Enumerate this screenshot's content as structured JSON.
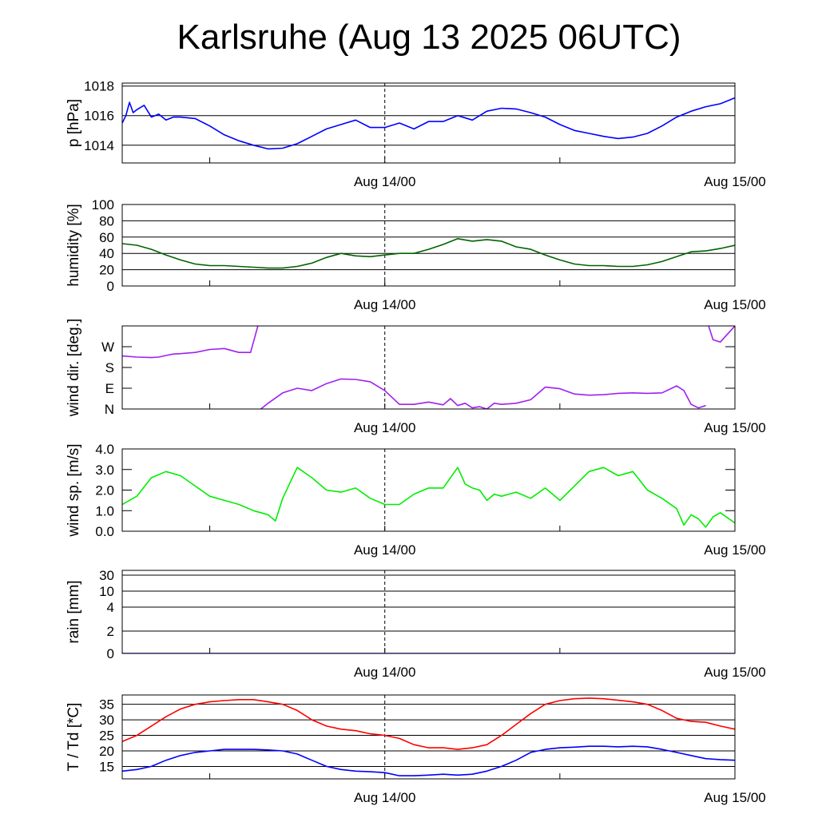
{
  "chart_data": {
    "title": "Karlsruhe (Aug 13 2025 06UTC)",
    "x_axis": {
      "range": [
        "Aug 13 06:00",
        "Aug 15 00:00"
      ],
      "tick_labels": [
        "Aug 14/00",
        "Aug 15/00"
      ]
    },
    "panels": [
      {
        "type": "line",
        "ylabel": "p [hPa]",
        "ylim": [
          1012.8,
          1018.2
        ],
        "tick_labels": [
          "1014",
          "1016",
          "1018"
        ],
        "tick_values": [
          1014,
          1016,
          1018
        ],
        "grid": true,
        "series": [
          {
            "color": "#0000ff",
            "x": [
              0,
              0.25,
              0.5,
              0.75,
              1,
              1.5,
              2,
              2.5,
              3,
              3.5,
              4,
              5,
              6,
              7,
              8,
              9,
              10,
              11,
              12,
              13,
              14,
              15,
              16,
              17,
              18,
              19,
              20,
              21,
              22,
              23,
              24,
              25,
              26,
              27,
              28,
              29,
              30,
              31,
              32,
              33,
              34,
              35,
              36,
              37,
              38,
              39,
              40,
              41,
              42
            ],
            "y": [
              1015.5,
              1016.0,
              1016.9,
              1016.2,
              1016.4,
              1016.7,
              1015.9,
              1016.1,
              1015.7,
              1015.9,
              1015.9,
              1015.8,
              1015.3,
              1014.7,
              1014.3,
              1014.0,
              1013.75,
              1013.8,
              1014.1,
              1014.6,
              1015.1,
              1015.4,
              1015.7,
              1015.2,
              1015.2,
              1015.5,
              1015.1,
              1015.6,
              1015.6,
              1016.0,
              1015.7,
              1016.3,
              1016.5,
              1016.45,
              1016.2,
              1015.9,
              1015.4,
              1015.0,
              1014.8,
              1014.6,
              1014.45,
              1014.55,
              1014.8,
              1015.3,
              1015.9,
              1016.3,
              1016.6,
              1016.8,
              1017.2
            ]
          }
        ]
      },
      {
        "type": "line",
        "ylabel": "humidity [%]",
        "ylim": [
          0,
          100
        ],
        "tick_labels": [
          "0",
          "20",
          "40",
          "60",
          "80",
          "100"
        ],
        "tick_values": [
          0,
          20,
          40,
          60,
          80,
          100
        ],
        "grid": true,
        "series": [
          {
            "color": "#006400",
            "x": [
              0,
              1,
              2,
              3,
              4,
              5,
              6,
              7,
              8,
              9,
              10,
              11,
              12,
              13,
              14,
              15,
              16,
              17,
              18,
              19,
              20,
              21,
              22,
              23,
              24,
              25,
              26,
              27,
              28,
              29,
              30,
              31,
              32,
              33,
              34,
              35,
              36,
              37,
              38,
              39,
              40,
              41,
              42
            ],
            "y": [
              52,
              50,
              45,
              38,
              32,
              27,
              25,
              25,
              24,
              23,
              22,
              22,
              24,
              28,
              35,
              40,
              37,
              36,
              38,
              40,
              40,
              45,
              51,
              58,
              55,
              57,
              55,
              48,
              45,
              38,
              32,
              27,
              25,
              25,
              24,
              24,
              26,
              30,
              36,
              42,
              43,
              46,
              50
            ]
          }
        ]
      },
      {
        "type": "line",
        "ylabel": "wind dir. [deg.]",
        "ylim": [
          0,
          360
        ],
        "tick_labels": [
          "N",
          "E",
          "S",
          "W"
        ],
        "tick_values": [
          0,
          90,
          180,
          270
        ],
        "grid": false,
        "series": [
          {
            "color": "#a020f0",
            "x": [
              0,
              1,
              2,
              2.5,
              3,
              3.5,
              4,
              5,
              6,
              7,
              8,
              8.8,
              9.3
            ],
            "y": [
              230,
              225,
              223,
              225,
              232,
              238,
              240,
              245,
              258,
              262,
              245,
              245,
              360
            ]
          },
          {
            "color": "#a020f0",
            "x": [
              9.5,
              10,
              11,
              12,
              13,
              14,
              15,
              16,
              17,
              18,
              19,
              20,
              21,
              22,
              22.5,
              23,
              23.5,
              24,
              24.5,
              25,
              25.5,
              26,
              27,
              28,
              29,
              30,
              31,
              32,
              33,
              34,
              35,
              36,
              37,
              38,
              38.5,
              39,
              39.5,
              40
            ],
            "y": [
              0,
              25,
              70,
              90,
              80,
              110,
              130,
              128,
              118,
              80,
              20,
              20,
              30,
              18,
              45,
              15,
              25,
              5,
              10,
              0,
              25,
              20,
              25,
              40,
              95,
              88,
              65,
              60,
              62,
              68,
              70,
              68,
              70,
              100,
              80,
              20,
              5,
              15
            ]
          },
          {
            "color": "#a020f0",
            "x": [
              40.2,
              40.5,
              41,
              42
            ],
            "y": [
              360,
              300,
              290,
              360
            ]
          }
        ]
      },
      {
        "type": "line",
        "ylabel": "wind sp. [m/s]",
        "ylim": [
          0,
          4
        ],
        "tick_labels": [
          "0.0",
          "1.0",
          "2.0",
          "3.0",
          "4.0"
        ],
        "tick_values": [
          0,
          1,
          2,
          3,
          4
        ],
        "grid": false,
        "series": [
          {
            "color": "#00ee00",
            "x": [
              0,
              1,
              2,
              3,
              4,
              5,
              6,
              7,
              8,
              9,
              9.5,
              10,
              10.5,
              11,
              12,
              13,
              14,
              15,
              16,
              17,
              18,
              19,
              20,
              21,
              22,
              23,
              23.5,
              24,
              24.5,
              25,
              25.5,
              26,
              27,
              28,
              29,
              30,
              31,
              32,
              33,
              34,
              35,
              36,
              37,
              38,
              38.5,
              39,
              39.5,
              40,
              40.5,
              41,
              42
            ],
            "y": [
              1.3,
              1.7,
              2.6,
              2.9,
              2.7,
              2.2,
              1.7,
              1.5,
              1.3,
              1.0,
              0.9,
              0.8,
              0.5,
              1.6,
              3.1,
              2.6,
              2.0,
              1.9,
              2.1,
              1.6,
              1.3,
              1.3,
              1.8,
              2.1,
              2.1,
              3.1,
              2.3,
              2.1,
              2.0,
              1.5,
              1.8,
              1.7,
              1.9,
              1.6,
              2.1,
              1.5,
              2.2,
              2.9,
              3.1,
              2.7,
              2.9,
              2.0,
              1.6,
              1.1,
              0.3,
              0.8,
              0.6,
              0.2,
              0.7,
              0.9,
              0.4
            ]
          }
        ]
      },
      {
        "type": "line",
        "ylabel": "rain [mm]",
        "scale": "custom",
        "tick_labels": [
          "0",
          "2",
          "4",
          "10",
          "30"
        ],
        "tick_values": [
          0,
          2,
          4,
          10,
          30
        ],
        "grid": true,
        "series": [
          {
            "color": "#0000ff",
            "x": [
              0,
              42
            ],
            "y": [
              0,
              0
            ]
          }
        ]
      },
      {
        "type": "line",
        "ylabel": "T / Td [*C]",
        "ylim": [
          11,
          38
        ],
        "tick_labels": [
          "15",
          "20",
          "25",
          "30",
          "35"
        ],
        "tick_values": [
          15,
          20,
          25,
          30,
          35
        ],
        "grid": true,
        "series": [
          {
            "color": "#ff0000",
            "x": [
              0,
              1,
              2,
              3,
              4,
              5,
              6,
              7,
              8,
              9,
              10,
              11,
              12,
              13,
              14,
              15,
              16,
              17,
              18,
              19,
              20,
              21,
              22,
              23,
              24,
              25,
              26,
              27,
              28,
              29,
              30,
              31,
              32,
              33,
              34,
              35,
              36,
              37,
              38,
              39,
              40,
              41,
              42
            ],
            "y": [
              23,
              25,
              28,
              31,
              33.5,
              35,
              35.8,
              36.2,
              36.5,
              36.5,
              35.8,
              35,
              33,
              30,
              28,
              27,
              26.5,
              25.5,
              25,
              24,
              22,
              21,
              21,
              20.5,
              21,
              22,
              25,
              28.5,
              32,
              35,
              36.2,
              36.8,
              37,
              36.8,
              36.3,
              35.8,
              35,
              33,
              30.5,
              29.5,
              29.2,
              28,
              27
            ]
          },
          {
            "color": "#0000ff",
            "x": [
              0,
              1,
              2,
              3,
              4,
              5,
              6,
              7,
              8,
              9,
              10,
              11,
              12,
              13,
              14,
              15,
              16,
              17,
              18,
              19,
              20,
              21,
              22,
              23,
              24,
              25,
              26,
              27,
              28,
              29,
              30,
              31,
              32,
              33,
              34,
              35,
              36,
              37,
              38,
              39,
              40,
              41,
              42
            ],
            "y": [
              13.5,
              14,
              15,
              17,
              18.5,
              19.5,
              20,
              20.5,
              20.5,
              20.5,
              20.3,
              20,
              19,
              17,
              15,
              14,
              13.5,
              13.3,
              13,
              12,
              12,
              12.2,
              12.5,
              12.2,
              12.5,
              13.5,
              15,
              17,
              19.5,
              20.5,
              21,
              21.2,
              21.5,
              21.5,
              21.3,
              21.5,
              21.3,
              20.5,
              19.5,
              18.5,
              17.5,
              17.2,
              17
            ]
          }
        ]
      }
    ]
  }
}
